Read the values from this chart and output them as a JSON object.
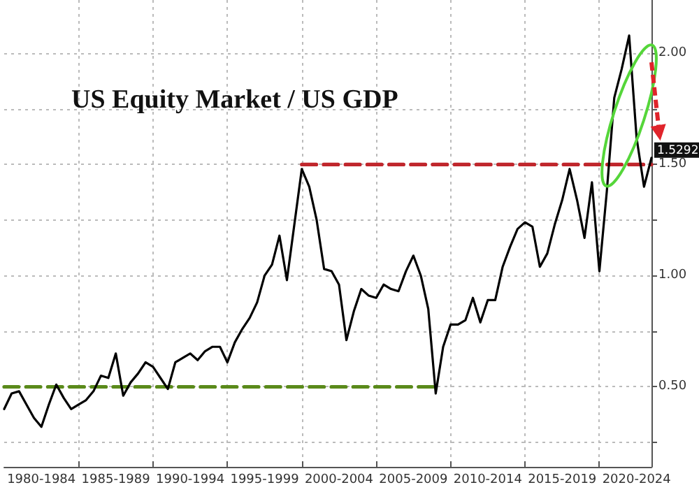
{
  "chart_data": {
    "type": "line",
    "title": "US Equity Market / US GDP",
    "categories": [
      null,
      null,
      null,
      null,
      null,
      "1980-1984",
      null,
      null,
      null,
      null,
      null,
      null,
      null,
      null,
      null,
      "1985-1989",
      null,
      null,
      null,
      null,
      null,
      null,
      null,
      null,
      null,
      "1990-1994",
      null,
      null,
      null,
      null,
      null,
      null,
      null,
      null,
      null,
      "1995-1999",
      null,
      null,
      null,
      null,
      null,
      null,
      null,
      null,
      null,
      "2000-2004",
      null,
      null,
      null,
      null,
      null,
      null,
      null,
      null,
      null,
      "2005-2009",
      null,
      null,
      null,
      null,
      null,
      null,
      null,
      null,
      null,
      "2010-2014",
      null,
      null,
      null,
      null,
      null,
      null,
      null,
      null,
      null,
      "2015-2019",
      null,
      null,
      null,
      null,
      null,
      null,
      null,
      null,
      null,
      "2020-2024",
      null,
      null
    ],
    "ylim": [
      0.14,
      2.24
    ],
    "yticks": [
      {
        "value": 0.25,
        "label": null
      },
      {
        "value": 0.5,
        "label": "0.50"
      },
      {
        "value": 0.75,
        "label": null
      },
      {
        "value": 1,
        "label": "1.00"
      },
      {
        "value": 1.25,
        "label": null
      },
      {
        "value": 1.5,
        "label": "1.50"
      },
      {
        "value": 1.75,
        "label": null
      },
      {
        "value": 2,
        "label": "2.00"
      }
    ],
    "grid": true,
    "marker": "none",
    "annotations": [
      "1.5292"
    ],
    "series": [
      {
        "color": "#000000",
        "line_style": "solid",
        "values": [
          0.4,
          0.47,
          0.48,
          0.42,
          0.36,
          0.32,
          0.42,
          0.51,
          0.45,
          0.4,
          0.42,
          0.44,
          0.48,
          0.55,
          0.54,
          0.65,
          0.46,
          0.52,
          0.56,
          0.61,
          0.59,
          0.54,
          0.49,
          0.61,
          0.63,
          0.65,
          0.62,
          0.66,
          0.68,
          0.68,
          0.61,
          0.7,
          0.76,
          0.81,
          0.88,
          1.0,
          1.05,
          1.18,
          0.98,
          1.23,
          1.48,
          1.4,
          1.25,
          1.03,
          1.02,
          0.96,
          0.71,
          0.84,
          0.94,
          0.91,
          0.9,
          0.96,
          0.94,
          0.93,
          1.02,
          1.09,
          1.0,
          0.85,
          0.47,
          0.68,
          0.78,
          0.78,
          0.8,
          0.9,
          0.79,
          0.89,
          0.89,
          1.04,
          1.13,
          1.21,
          1.24,
          1.22,
          1.04,
          1.1,
          1.23,
          1.34,
          1.48,
          1.34,
          1.17,
          1.42,
          1.02,
          1.38,
          1.8,
          1.93,
          2.08,
          1.62,
          1.4,
          1.53
        ]
      },
      {
        "color": "#c0262c",
        "line_style": "dashed",
        "values": [
          null,
          null,
          null,
          null,
          null,
          null,
          null,
          null,
          null,
          null,
          null,
          null,
          null,
          null,
          null,
          null,
          null,
          null,
          null,
          null,
          null,
          null,
          null,
          null,
          null,
          null,
          null,
          null,
          null,
          null,
          null,
          null,
          null,
          null,
          null,
          null,
          null,
          null,
          null,
          null,
          1.5,
          1.5,
          1.5,
          1.5,
          1.5,
          1.5,
          1.5,
          1.5,
          1.5,
          1.5,
          1.5,
          1.5,
          1.5,
          1.5,
          1.5,
          1.5,
          1.5,
          1.5,
          1.5,
          1.5,
          1.5,
          1.5,
          1.5,
          1.5,
          1.5,
          1.5,
          1.5,
          1.5,
          1.5,
          1.5,
          1.5,
          1.5,
          1.5,
          1.5,
          1.5,
          1.5,
          1.5,
          1.5,
          1.5,
          1.5,
          1.5,
          1.5,
          1.5,
          1.5,
          1.5,
          1.5,
          1.5,
          1.5
        ]
      },
      {
        "color": "#5a8a1a",
        "line_style": "dashed",
        "values": [
          0.5,
          0.5,
          0.5,
          0.5,
          0.5,
          0.5,
          0.5,
          0.5,
          0.5,
          0.5,
          0.5,
          0.5,
          0.5,
          0.5,
          0.5,
          0.5,
          0.5,
          0.5,
          0.5,
          0.5,
          0.5,
          0.5,
          0.5,
          0.5,
          0.5,
          0.5,
          0.5,
          0.5,
          0.5,
          0.5,
          0.5,
          0.5,
          0.5,
          0.5,
          0.5,
          0.5,
          0.5,
          0.5,
          0.5,
          0.5,
          0.5,
          0.5,
          0.5,
          0.5,
          0.5,
          0.5,
          0.5,
          0.5,
          0.5,
          0.5,
          0.5,
          0.5,
          0.5,
          0.5,
          0.5,
          0.5,
          0.5,
          0.5,
          0.5,
          null,
          null,
          null,
          null,
          null,
          null,
          null,
          null,
          null,
          null,
          null,
          null,
          null,
          null,
          null,
          null,
          null,
          null,
          null,
          null,
          null,
          null,
          null,
          null,
          null,
          null,
          null,
          null,
          null
        ]
      }
    ]
  }
}
